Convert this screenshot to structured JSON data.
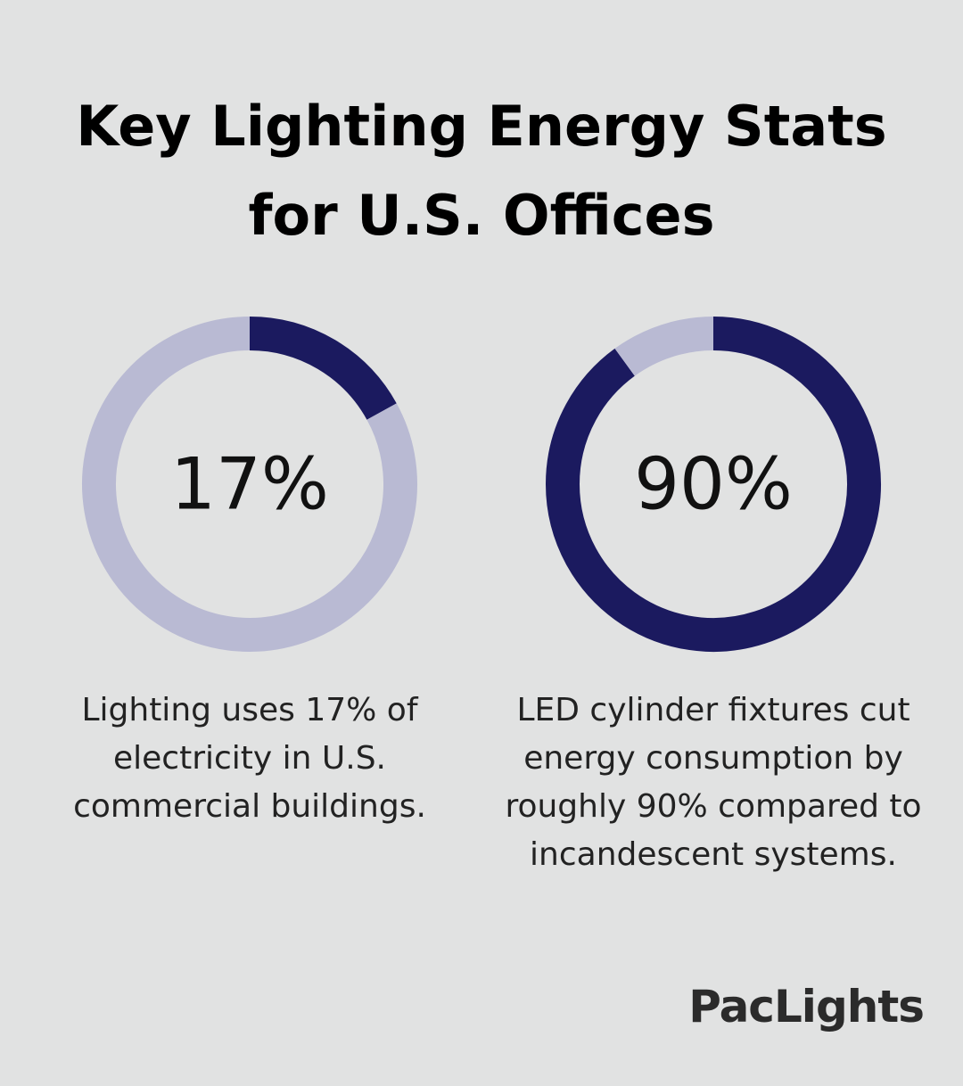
{
  "title": "Key Lighting Energy Stats for U.S. Offices",
  "chart_data": [
    {
      "type": "donut",
      "values": [
        17,
        83
      ],
      "value_labels": [
        "17%",
        null
      ],
      "colors": [
        "#1b1a5f",
        "#b9bad3"
      ],
      "caption": "Lighting uses 17% of electricity in U.S. commercial buildings."
    },
    {
      "type": "donut",
      "values": [
        90,
        10
      ],
      "value_labels": [
        "90%",
        null
      ],
      "colors": [
        "#1b1a5f",
        "#b9bad3"
      ],
      "caption": "LED cylinder fixtures cut energy consumption by roughly 90% compared to incandescent systems."
    }
  ],
  "brand": "PacLights"
}
